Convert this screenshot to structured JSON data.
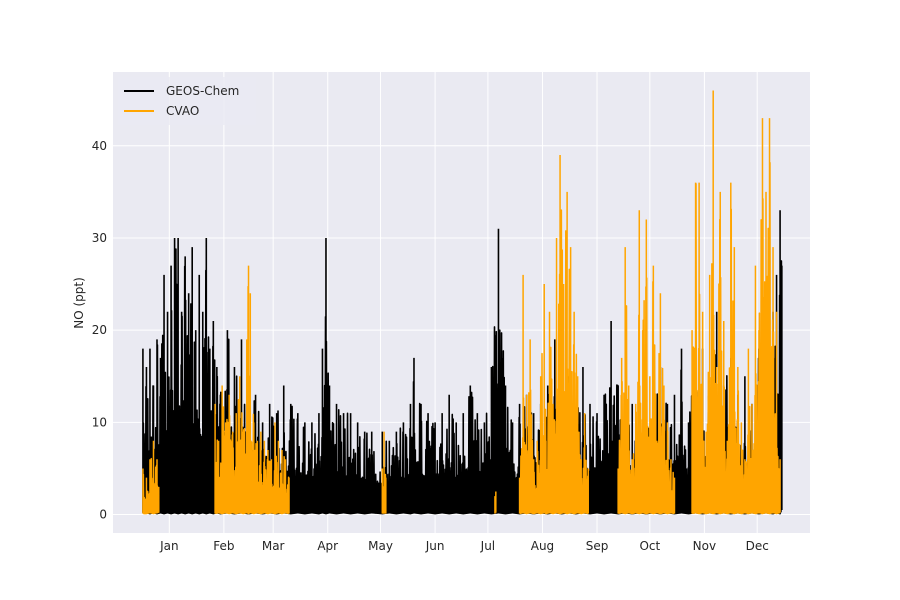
{
  "chart_data": {
    "type": "line",
    "title": "",
    "xlabel": "",
    "ylabel": "NO (ppt)",
    "x_ticks": [
      "Jan",
      "Feb",
      "Mar",
      "Apr",
      "May",
      "Jun",
      "Jul",
      "Aug",
      "Sep",
      "Oct",
      "Nov",
      "Dec"
    ],
    "x_tick_day_of_year": [
      1,
      32,
      60,
      91,
      121,
      152,
      182,
      213,
      244,
      274,
      305,
      335
    ],
    "xlim_day_of_year": [
      -31,
      365
    ],
    "y_ticks": [
      0,
      10,
      20,
      30,
      40
    ],
    "ylim": [
      -2,
      48
    ],
    "grid": true,
    "legend_position": "upper-left",
    "series": [
      {
        "name": "GEOS-Chem",
        "color": "#000000",
        "data_resolution": "approximate daily envelope (min / max NO, ppt) read from the dense time series",
        "points": [
          [
            -14,
            0.2,
            18
          ],
          [
            -12,
            0.2,
            16
          ],
          [
            -10,
            0.1,
            18
          ],
          [
            -8,
            0.2,
            14
          ],
          [
            -6,
            0.1,
            19
          ],
          [
            -4,
            0.2,
            17
          ],
          [
            -2,
            0.1,
            26
          ],
          [
            0,
            0.2,
            22
          ],
          [
            2,
            0.1,
            27
          ],
          [
            4,
            0.2,
            30
          ],
          [
            6,
            0.1,
            30
          ],
          [
            8,
            0.2,
            22
          ],
          [
            10,
            0.1,
            28
          ],
          [
            12,
            0.2,
            24
          ],
          [
            14,
            0.1,
            29
          ],
          [
            16,
            0.2,
            20
          ],
          [
            18,
            0.1,
            26
          ],
          [
            20,
            0.2,
            22
          ],
          [
            22,
            0.1,
            30
          ],
          [
            24,
            0.2,
            18
          ],
          [
            26,
            0.1,
            21
          ],
          [
            28,
            0.2,
            16
          ],
          [
            30,
            0.1,
            13
          ],
          [
            34,
            0.2,
            20
          ],
          [
            38,
            0.1,
            16
          ],
          [
            42,
            0.2,
            19
          ],
          [
            46,
            0.1,
            14
          ],
          [
            50,
            0.2,
            13
          ],
          [
            54,
            0.1,
            10
          ],
          [
            58,
            0.2,
            12
          ],
          [
            62,
            0.1,
            11
          ],
          [
            66,
            0.2,
            14
          ],
          [
            70,
            0.1,
            12
          ],
          [
            74,
            0.2,
            11
          ],
          [
            78,
            0.1,
            10
          ],
          [
            82,
            0.2,
            10
          ],
          [
            86,
            0.1,
            11
          ],
          [
            88,
            0.2,
            18
          ],
          [
            90,
            0.1,
            30
          ],
          [
            92,
            0.2,
            14
          ],
          [
            96,
            0.1,
            12
          ],
          [
            100,
            0.2,
            11
          ],
          [
            104,
            0.1,
            11
          ],
          [
            108,
            0.2,
            10
          ],
          [
            112,
            0.1,
            9
          ],
          [
            116,
            0.2,
            9
          ],
          [
            122,
            0.1,
            9
          ],
          [
            126,
            0.2,
            8
          ],
          [
            130,
            0.1,
            9
          ],
          [
            134,
            0.2,
            10
          ],
          [
            138,
            0.1,
            12
          ],
          [
            140,
            0.2,
            17
          ],
          [
            144,
            0.1,
            12
          ],
          [
            148,
            0.2,
            11
          ],
          [
            152,
            0.1,
            10
          ],
          [
            156,
            0.2,
            11
          ],
          [
            160,
            0.1,
            13
          ],
          [
            164,
            0.2,
            10
          ],
          [
            168,
            0.1,
            11
          ],
          [
            172,
            0.2,
            14
          ],
          [
            176,
            0.1,
            11
          ],
          [
            180,
            0.2,
            10
          ],
          [
            184,
            0.1,
            16
          ],
          [
            188,
            0.2,
            31
          ],
          [
            192,
            0.1,
            14
          ],
          [
            196,
            0.2,
            10
          ],
          [
            200,
            0.1,
            12
          ],
          [
            204,
            0.2,
            13
          ],
          [
            208,
            0.1,
            11
          ],
          [
            212,
            0.2,
            12
          ],
          [
            216,
            0.1,
            14
          ],
          [
            220,
            0.2,
            19
          ],
          [
            224,
            0.1,
            13
          ],
          [
            228,
            0.2,
            15
          ],
          [
            232,
            0.1,
            11
          ],
          [
            236,
            0.2,
            16
          ],
          [
            240,
            0.1,
            12
          ],
          [
            244,
            0.2,
            11
          ],
          [
            248,
            0.1,
            13
          ],
          [
            252,
            0.2,
            21
          ],
          [
            256,
            0.1,
            14
          ],
          [
            260,
            0.2,
            11
          ],
          [
            264,
            0.1,
            12
          ],
          [
            268,
            0.2,
            14
          ],
          [
            272,
            0.1,
            13
          ],
          [
            276,
            0.2,
            12
          ],
          [
            280,
            0.1,
            16
          ],
          [
            284,
            0.2,
            12
          ],
          [
            288,
            0.1,
            13
          ],
          [
            292,
            0.2,
            18
          ],
          [
            296,
            0.1,
            10
          ],
          [
            300,
            0.2,
            17
          ],
          [
            304,
            0.1,
            18
          ],
          [
            308,
            0.2,
            13
          ],
          [
            312,
            0.1,
            22
          ],
          [
            316,
            0.2,
            14
          ],
          [
            320,
            0.1,
            17
          ],
          [
            324,
            0.2,
            13
          ],
          [
            328,
            0.1,
            15
          ],
          [
            332,
            0.2,
            12
          ],
          [
            336,
            0.1,
            18
          ],
          [
            340,
            0.2,
            14
          ],
          [
            344,
            0.1,
            22
          ],
          [
            346,
            0.2,
            26
          ],
          [
            348,
            0.1,
            33
          ],
          [
            349,
            0.5,
            27
          ]
        ]
      },
      {
        "name": "CVAO",
        "color": "#ffa500",
        "data_resolution": "approximate daily envelope (min / max NO, ppt) read from the dense time series; gaps where no measurements are shown",
        "segments": [
          [
            [
              -14,
              0.1,
              5
            ],
            [
              -12,
              0.1,
              4
            ],
            [
              -10,
              0.2,
              6
            ],
            [
              -8,
              0.1,
              8
            ],
            [
              -6,
              0.2,
              6
            ],
            [
              -5,
              0.2,
              3
            ]
          ],
          [
            [
              27,
              0.1,
              12
            ],
            [
              29,
              0.2,
              8
            ],
            [
              31,
              0.1,
              14
            ],
            [
              33,
              0.2,
              10
            ],
            [
              35,
              0.1,
              13
            ],
            [
              37,
              0.2,
              9
            ],
            [
              39,
              0.1,
              11
            ],
            [
              41,
              0.2,
              15
            ],
            [
              43,
              0.1,
              9
            ],
            [
              45,
              0.2,
              19
            ],
            [
              46,
              0.1,
              27
            ],
            [
              47,
              0.2,
              24
            ],
            [
              49,
              0.1,
              10
            ],
            [
              51,
              0.2,
              8
            ],
            [
              53,
              0.1,
              9
            ],
            [
              55,
              0.2,
              8
            ],
            [
              57,
              0.1,
              7
            ],
            [
              59,
              0.2,
              6
            ],
            [
              61,
              0.1,
              10
            ],
            [
              63,
              0.2,
              8
            ],
            [
              65,
              0.1,
              7
            ],
            [
              67,
              0.2,
              6
            ],
            [
              69,
              0.1,
              4
            ]
          ],
          [
            [
              122,
              0.1,
              5
            ],
            [
              123,
              0.2,
              9
            ],
            [
              124,
              0.1,
              4
            ]
          ],
          [
            [
              186,
              0.1,
              2
            ],
            [
              186.5,
              0.2,
              2.5
            ]
          ],
          [
            [
              200,
              0.1,
              4
            ],
            [
              202,
              0.2,
              26
            ],
            [
              204,
              0.1,
              13
            ],
            [
              206,
              0.2,
              19
            ],
            [
              208,
              0.1,
              6
            ],
            [
              210,
              0.2,
              8
            ],
            [
              212,
              0.1,
              15
            ],
            [
              214,
              0.2,
              25
            ],
            [
              215,
              0.1,
              8
            ],
            [
              217,
              0.2,
              22
            ],
            [
              219,
              0.1,
              12
            ],
            [
              221,
              0.2,
              30
            ],
            [
              223,
              0.1,
              39
            ],
            [
              225,
              0.2,
              25
            ],
            [
              227,
              0.1,
              35
            ],
            [
              229,
              0.2,
              29
            ],
            [
              231,
              0.1,
              22
            ],
            [
              233,
              0.2,
              15
            ],
            [
              235,
              0.1,
              6
            ],
            [
              237,
              0.2,
              11
            ],
            [
              239,
              0.1,
              5
            ]
          ],
          [
            [
              256,
              0.1,
              5
            ],
            [
              258,
              0.2,
              17
            ],
            [
              260,
              0.1,
              29
            ],
            [
              262,
              0.2,
              14
            ],
            [
              264,
              0.1,
              6
            ],
            [
              266,
              0.2,
              12
            ],
            [
              268,
              0.1,
              33
            ],
            [
              270,
              0.2,
              20
            ],
            [
              272,
              0.1,
              32
            ],
            [
              274,
              0.2,
              15
            ],
            [
              276,
              0.1,
              27
            ],
            [
              278,
              0.2,
              8
            ],
            [
              280,
              0.1,
              24
            ],
            [
              282,
              0.2,
              14
            ],
            [
              284,
              0.1,
              10
            ],
            [
              286,
              0.2,
              6
            ],
            [
              288,
              0.1,
              4
            ]
          ],
          [
            [
              298,
              0.1,
              20
            ],
            [
              300,
              0.2,
              36
            ],
            [
              302,
              0.1,
              36
            ],
            [
              304,
              0.2,
              22
            ],
            [
              306,
              0.1,
              9
            ],
            [
              308,
              0.2,
              26
            ],
            [
              310,
              0.1,
              46
            ],
            [
              312,
              0.2,
              16
            ],
            [
              314,
              0.1,
              35
            ],
            [
              316,
              0.2,
              21
            ],
            [
              318,
              0.1,
              8
            ],
            [
              320,
              0.2,
              36
            ],
            [
              322,
              0.1,
              29
            ],
            [
              324,
              0.2,
              16
            ],
            [
              326,
              0.1,
              10
            ],
            [
              328,
              0.2,
              6
            ],
            [
              330,
              0.1,
              18
            ],
            [
              332,
              0.2,
              12
            ],
            [
              334,
              0.1,
              27
            ],
            [
              336,
              0.2,
              20
            ],
            [
              338,
              0.1,
              43
            ],
            [
              340,
              0.2,
              35
            ],
            [
              342,
              0.1,
              43
            ],
            [
              344,
              0.2,
              29
            ],
            [
              346,
              0.1,
              22
            ],
            [
              348,
              0.2,
              6
            ]
          ]
        ]
      }
    ]
  }
}
